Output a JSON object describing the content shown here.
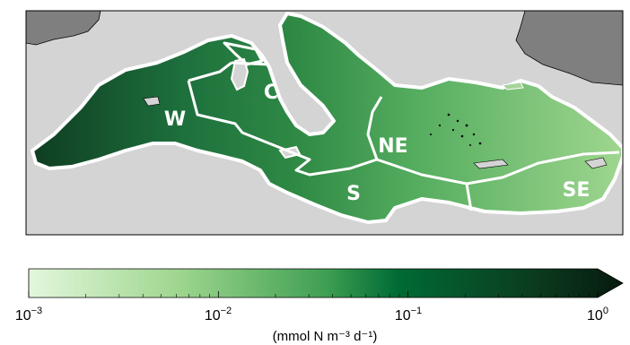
{
  "map": {
    "regions": [
      {
        "id": "W",
        "label": "W"
      },
      {
        "id": "C",
        "label": "C"
      },
      {
        "id": "NE",
        "label": "NE"
      },
      {
        "id": "S",
        "label": "S"
      },
      {
        "id": "SE",
        "label": "SE"
      }
    ]
  },
  "colorbar": {
    "unit_label": "(mmol N m⁻³ d⁻¹)",
    "scale": "log",
    "range": [
      0.001,
      1
    ],
    "ticks": [
      {
        "base": "10",
        "exp": "−3"
      },
      {
        "base": "10",
        "exp": "−2"
      },
      {
        "base": "10",
        "exp": "−1"
      },
      {
        "base": "10",
        "exp": "0"
      }
    ],
    "colors": [
      "#e3f7dc",
      "#9fd68f",
      "#3f9f52",
      "#006b35",
      "#0b3b1f",
      "#000000"
    ],
    "extend": "max"
  }
}
